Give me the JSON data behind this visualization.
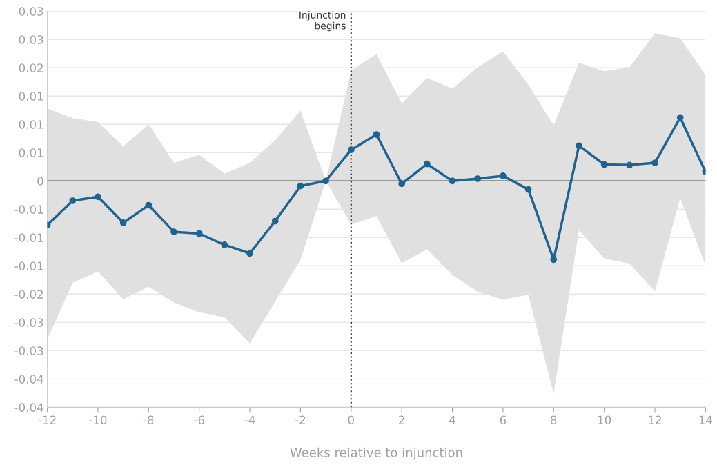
{
  "chart_data": {
    "type": "line",
    "xlabel": "Weeks relative to injunction",
    "x": [
      -12,
      -11,
      -10,
      -9,
      -8,
      -7,
      -6,
      -5,
      -4,
      -3,
      -2,
      -1,
      0,
      1,
      2,
      3,
      4,
      5,
      6,
      7,
      8,
      9,
      10,
      11,
      12,
      13,
      14
    ],
    "series": [
      {
        "color": "#1f6391",
        "marker": "circle",
        "values": [
          -0.0078,
          -0.0035,
          -0.0028,
          -0.0074,
          -0.0043,
          -0.009,
          -0.0093,
          -0.0113,
          -0.0128,
          -0.0071,
          -0.0009,
          0,
          0.0055,
          0.0082,
          -0.0005,
          0.003,
          0.0,
          0.0004,
          0.0009,
          -0.0015,
          -0.0139,
          0.0062,
          0.0029,
          0.0028,
          0.0032,
          0.0112,
          0.0016
        ],
        "upper": [
          0.0128,
          0.0111,
          0.0104,
          0.0061,
          0.01,
          0.0032,
          0.0046,
          0.0013,
          0.0032,
          0.0072,
          0.0124,
          0,
          0.0195,
          0.0224,
          0.0137,
          0.0182,
          0.0163,
          0.0201,
          0.0229,
          0.017,
          0.0098,
          0.0209,
          0.0194,
          0.0201,
          0.0261,
          0.0252,
          0.0187
        ],
        "lower": [
          -0.028,
          -0.018,
          -0.016,
          -0.0209,
          -0.0187,
          -0.0215,
          -0.0232,
          -0.0241,
          -0.0287,
          -0.0213,
          -0.014,
          0,
          -0.0077,
          -0.0062,
          -0.0145,
          -0.0121,
          -0.0166,
          -0.0196,
          -0.021,
          -0.0201,
          -0.0376,
          -0.0087,
          -0.0137,
          -0.0146,
          -0.0195,
          -0.003,
          -0.015
        ]
      }
    ],
    "xlim": [
      -12,
      14
    ],
    "xticks": [
      -12,
      -10,
      -8,
      -6,
      -4,
      -2,
      0,
      2,
      4,
      6,
      8,
      10,
      12,
      14
    ],
    "ylim": [
      -0.04,
      0.03
    ],
    "yticks": [
      {
        "value": -0.04,
        "label": "-0.04"
      },
      {
        "value": -0.035,
        "label": "-0.04"
      },
      {
        "value": -0.03,
        "label": "-0.03"
      },
      {
        "value": -0.025,
        "label": "-0.03"
      },
      {
        "value": -0.02,
        "label": "-0.02"
      },
      {
        "value": -0.015,
        "label": "-0.01"
      },
      {
        "value": -0.01,
        "label": "-0.01"
      },
      {
        "value": -0.005,
        "label": "-0.01"
      },
      0,
      {
        "value": 0.005,
        "label": "0.01"
      },
      {
        "value": 0.01,
        "label": "0.01"
      },
      {
        "value": 0.015,
        "label": "0.01"
      },
      {
        "value": 0.02,
        "label": "0.02"
      },
      {
        "value": 0.025,
        "label": "0.03"
      },
      {
        "value": 0.03,
        "label": "0.03"
      }
    ],
    "grid": "y",
    "line_style": "solid",
    "ref_lines": [
      {
        "axis": "x",
        "value": 0,
        "label": "Injunction\nbegins",
        "color": "#222222",
        "line_style": "dotted"
      },
      {
        "axis": "y",
        "value": 0,
        "color": "#555555",
        "line_style": "solid"
      }
    ]
  }
}
